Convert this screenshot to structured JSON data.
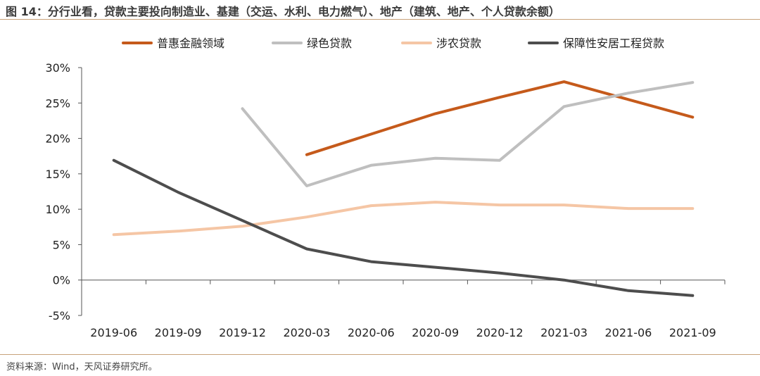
{
  "title": "图 14：分行业看，贷款主要投向制造业、基建（交运、水利、电力燃气）、地产（建筑、地产、个人贷款余额）",
  "source": "资料来源：Wind，天风证券研究所。",
  "colors": {
    "普惠金融领域": "#c55a1b",
    "绿色贷款": "#bfbfbf",
    "涉农贷款": "#f5c6a5",
    "保障性安居工程贷款": "#4d4d4d",
    "axis": "#555555",
    "rule": "#c8a27a"
  },
  "chart_data": {
    "type": "line",
    "title": "",
    "xlabel": "",
    "ylabel": "",
    "categories": [
      "2019-06",
      "2019-09",
      "2019-12",
      "2020-03",
      "2020-06",
      "2020-09",
      "2020-12",
      "2021-03",
      "2021-06",
      "2021-09"
    ],
    "ylim": [
      -5,
      30
    ],
    "yticks": [
      30,
      25,
      20,
      15,
      10,
      5,
      0,
      -5
    ],
    "ytick_labels": [
      "30%",
      "25%",
      "20%",
      "15%",
      "10%",
      "5%",
      "0%",
      "-5%"
    ],
    "grid": false,
    "legend_position": "top",
    "series": [
      {
        "name": "普惠金融领域",
        "values": [
          null,
          null,
          null,
          17.7,
          20.6,
          23.5,
          25.8,
          28.0,
          25.5,
          23.0
        ]
      },
      {
        "name": "绿色贷款",
        "values": [
          null,
          null,
          24.2,
          13.3,
          16.2,
          17.2,
          16.9,
          24.5,
          26.4,
          27.9
        ]
      },
      {
        "name": "涉农贷款",
        "values": [
          6.4,
          6.9,
          7.6,
          8.9,
          10.5,
          11.0,
          10.6,
          10.6,
          10.1,
          10.1
        ]
      },
      {
        "name": "保障性安居工程贷款",
        "values": [
          16.9,
          12.4,
          8.4,
          4.4,
          2.6,
          1.8,
          1.0,
          0.0,
          -1.5,
          -2.2
        ]
      }
    ]
  }
}
